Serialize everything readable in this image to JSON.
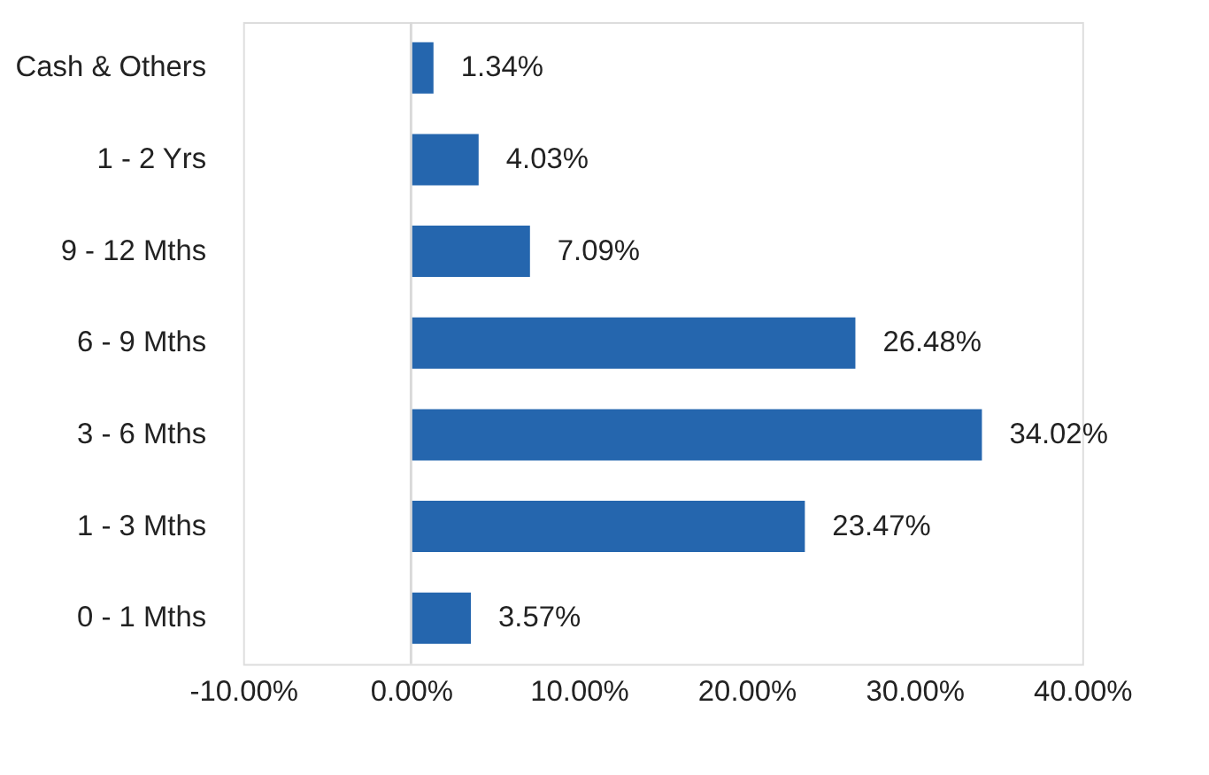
{
  "chart_data": {
    "type": "bar",
    "orientation": "horizontal",
    "categories": [
      "Cash & Others",
      "1 - 2 Yrs",
      "9 - 12 Mths",
      "6 - 9 Mths",
      "3 - 6 Mths",
      "1 - 3 Mths",
      "0 - 1 Mths"
    ],
    "values": [
      1.34,
      4.03,
      7.09,
      26.48,
      34.02,
      23.47,
      3.57
    ],
    "value_labels": [
      "1.34%",
      "4.03%",
      "7.09%",
      "26.48%",
      "34.02%",
      "23.47%",
      "3.57%"
    ],
    "color": "#2566ae",
    "xlim": [
      -10,
      40
    ],
    "xticks": [
      {
        "value": -10,
        "label": "-10.00%"
      },
      {
        "value": 0,
        "label": "0.00%"
      },
      {
        "value": 10,
        "label": "10.00%"
      },
      {
        "value": 20,
        "label": "20.00%"
      },
      {
        "value": 30,
        "label": "30.00%"
      },
      {
        "value": 40,
        "label": "40.00%"
      }
    ],
    "ref_lines": [
      {
        "axis": "x",
        "value": 0,
        "label": null,
        "color": "#d9d9d9"
      }
    ],
    "grid": false
  }
}
